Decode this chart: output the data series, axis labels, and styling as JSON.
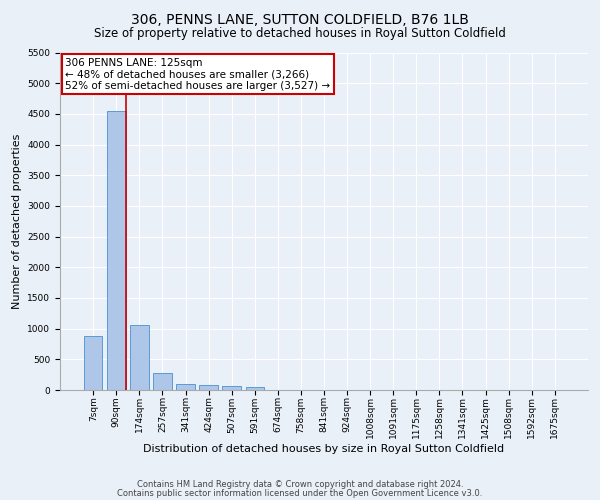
{
  "title": "306, PENNS LANE, SUTTON COLDFIELD, B76 1LB",
  "subtitle": "Size of property relative to detached houses in Royal Sutton Coldfield",
  "xlabel": "Distribution of detached houses by size in Royal Sutton Coldfield",
  "ylabel": "Number of detached properties",
  "categories": [
    "7sqm",
    "90sqm",
    "174sqm",
    "257sqm",
    "341sqm",
    "424sqm",
    "507sqm",
    "591sqm",
    "674sqm",
    "758sqm",
    "841sqm",
    "924sqm",
    "1008sqm",
    "1091sqm",
    "1175sqm",
    "1258sqm",
    "1341sqm",
    "1425sqm",
    "1508sqm",
    "1592sqm",
    "1675sqm"
  ],
  "values": [
    880,
    4540,
    1060,
    270,
    90,
    75,
    60,
    50,
    0,
    0,
    0,
    0,
    0,
    0,
    0,
    0,
    0,
    0,
    0,
    0,
    0
  ],
  "bar_color": "#aec6e8",
  "bar_edge_color": "#5b9bd5",
  "vline_color": "#cc0000",
  "annotation_text": "306 PENNS LANE: 125sqm\n← 48% of detached houses are smaller (3,266)\n52% of semi-detached houses are larger (3,527) →",
  "annotation_box_color": "#ffffff",
  "annotation_box_edge_color": "#cc0000",
  "ylim": [
    0,
    5500
  ],
  "yticks": [
    0,
    500,
    1000,
    1500,
    2000,
    2500,
    3000,
    3500,
    4000,
    4500,
    5000,
    5500
  ],
  "footer1": "Contains HM Land Registry data © Crown copyright and database right 2024.",
  "footer2": "Contains public sector information licensed under the Open Government Licence v3.0.",
  "bg_color": "#eaf0f8",
  "plot_bg_color": "#eaf0f8",
  "title_fontsize": 10,
  "subtitle_fontsize": 8.5,
  "tick_fontsize": 6.5,
  "ylabel_fontsize": 8,
  "xlabel_fontsize": 8,
  "footer_fontsize": 6
}
